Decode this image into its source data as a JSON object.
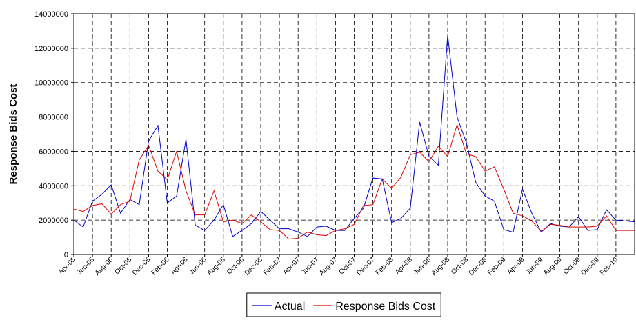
{
  "chart_data": {
    "type": "line",
    "y_label": "Response Bids Cost",
    "categories": [
      "Apr-05",
      null,
      "Jun-05",
      null,
      "Aug-05",
      null,
      "Oct-05",
      null,
      "Dec-05",
      null,
      "Feb-06",
      null,
      "Apr-06",
      null,
      "Jun-06",
      null,
      "Aug-06",
      null,
      "Oct-06",
      null,
      "Dec-06",
      null,
      "Feb-07",
      null,
      "Apr-07",
      null,
      "Jun-07",
      null,
      "Aug-07",
      null,
      "Oct-07",
      null,
      "Dec-07",
      null,
      "Feb-08",
      null,
      "Apr-08",
      null,
      "Jun-08",
      null,
      "Aug-08",
      null,
      "Oct-08",
      null,
      "Dec-08",
      null,
      "Feb-09",
      null,
      "Apr-09",
      null,
      "Jun-09",
      null,
      "Aug-09",
      null,
      "Oct-09",
      null,
      "Dec-09",
      null,
      "Feb-10",
      null,
      null
    ],
    "series": [
      {
        "name": "Actual",
        "color": "#0000cc",
        "values": [
          2000000,
          1600000,
          3100000,
          3500000,
          4050000,
          2400000,
          3200000,
          2900000,
          6600000,
          7500000,
          3000000,
          3400000,
          6700000,
          1700000,
          1400000,
          2000000,
          2900000,
          1050000,
          1400000,
          1800000,
          2500000,
          2000000,
          1500000,
          1500000,
          1300000,
          1050000,
          1600000,
          1650000,
          1400000,
          1400000,
          2100000,
          2700000,
          4450000,
          4400000,
          1850000,
          2100000,
          2700000,
          7700000,
          5700000,
          5200000,
          12750000,
          8000000,
          6500000,
          4200000,
          3400000,
          3100000,
          1450000,
          1300000,
          3800000,
          2400000,
          1300000,
          1800000,
          1650000,
          1600000,
          2200000,
          1400000,
          1450000,
          2600000,
          2000000,
          1950000,
          1900000
        ]
      },
      {
        "name": "Response Bids Cost",
        "color": "#e00000",
        "values": [
          2650000,
          2500000,
          2850000,
          2950000,
          2350000,
          2900000,
          3100000,
          5500000,
          6350000,
          4850000,
          4350000,
          6000000,
          3700000,
          2300000,
          2300000,
          3700000,
          1900000,
          2000000,
          1800000,
          2300000,
          1900000,
          1450000,
          1400000,
          900000,
          950000,
          1300000,
          1150000,
          1100000,
          1400000,
          1500000,
          1750000,
          2850000,
          2900000,
          4400000,
          3850000,
          4500000,
          5800000,
          5950000,
          5400000,
          6300000,
          5700000,
          7550000,
          5850000,
          5700000,
          4850000,
          5100000,
          3800000,
          2400000,
          2250000,
          1950000,
          1350000,
          1750000,
          1700000,
          1600000,
          1600000,
          1600000,
          1650000,
          2250000,
          1400000,
          1400000,
          1400000
        ]
      }
    ],
    "ylim": [
      0,
      14000000
    ],
    "yticks": [
      0,
      2000000,
      4000000,
      6000000,
      8000000,
      10000000,
      12000000,
      14000000
    ],
    "grid": true,
    "legend": "bottom"
  }
}
